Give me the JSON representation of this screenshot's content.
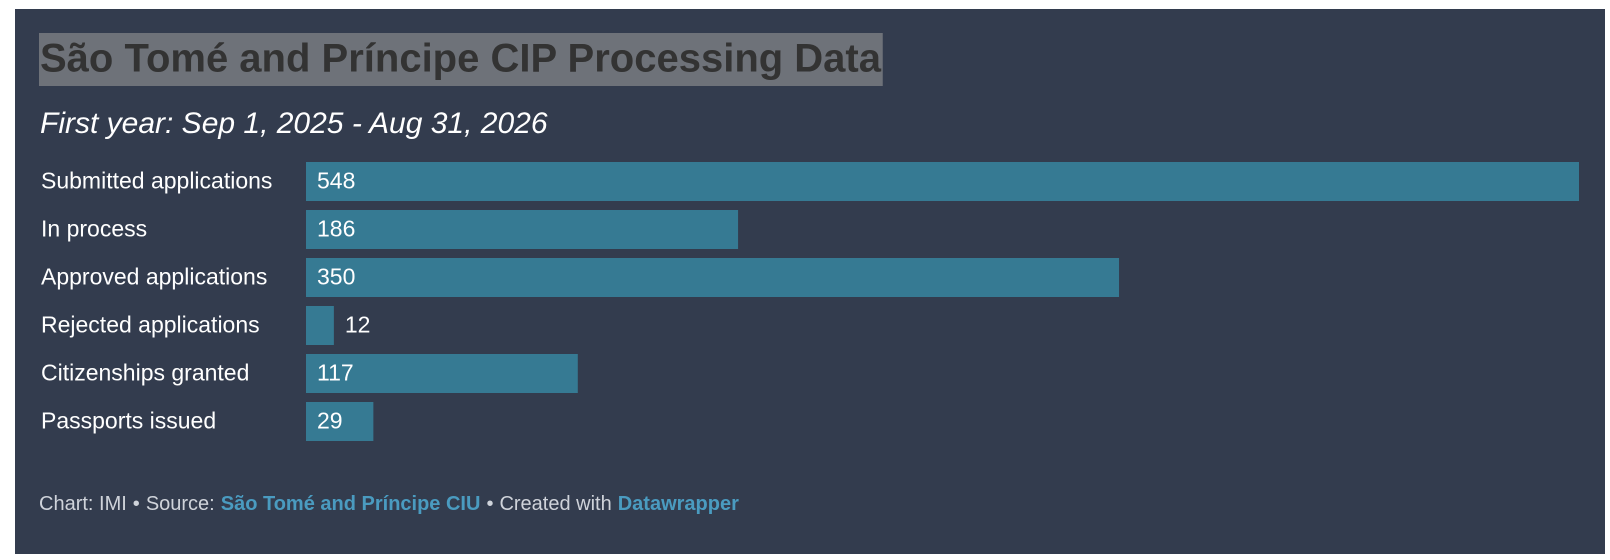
{
  "chart_data": {
    "type": "bar",
    "title": "São Tomé and Príncipe CIP Processing Data",
    "subtitle": "First year: Sep 1, 2025 - Aug 31, 2026",
    "categories": [
      "Submitted applications",
      "In process",
      "Approved applications",
      "Rejected applications",
      "Citizenships granted",
      "Passports issued"
    ],
    "values": [
      548,
      186,
      350,
      12,
      117,
      29
    ],
    "color": "#367a93",
    "footer": {
      "chart": "Chart: IMI",
      "separator": "•",
      "source_label": "Source:",
      "source": "São Tomé and Príncipe CIU",
      "created_label": "Created with",
      "created": "Datawrapper"
    }
  }
}
